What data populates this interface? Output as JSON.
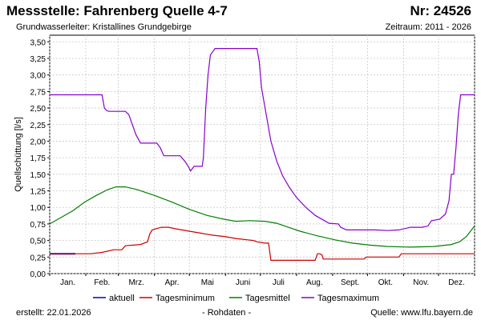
{
  "header": {
    "title": "Messstelle: Fahrenberg Quelle 4-7",
    "number": "Nr: 24526",
    "subtitle": "Grundwasserleiter: Kristallines Grundgebirge",
    "period": "Zeitraum: 2011 - 2026"
  },
  "footer": {
    "created": "erstellt:  22.01.2026",
    "rawdata": "- Rohdaten -",
    "source": "Quelle: www.lfu.bayern.de"
  },
  "chart_data": {
    "type": "line",
    "ylabel": "Quellschüttung [l/s]",
    "xlabel": "",
    "ylim": [
      0,
      3.6
    ],
    "yticks": [
      "0,00",
      "0,25",
      "0,50",
      "0,75",
      "1,00",
      "1,25",
      "1,50",
      "1,75",
      "2,00",
      "2,25",
      "2,50",
      "2,75",
      "3,00",
      "3,25",
      "3,50"
    ],
    "months": [
      "Jan.",
      "Feb.",
      "Mrz.",
      "Apr.",
      "Mai",
      "Juni",
      "Juli",
      "Aug.",
      "Sept.",
      "Okt.",
      "Nov.",
      "Dez."
    ],
    "grid": true,
    "legend_position": "bottom",
    "series": [
      {
        "name": "aktuell",
        "color": "#0000cc",
        "points": [
          [
            0,
            0.3
          ],
          [
            10,
            0.3
          ],
          [
            22,
            0.3
          ]
        ]
      },
      {
        "name": "Tagesminimum",
        "color": "#cc0000",
        "points": [
          [
            0,
            0.3
          ],
          [
            35,
            0.3
          ],
          [
            45,
            0.32
          ],
          [
            55,
            0.36
          ],
          [
            62,
            0.36
          ],
          [
            65,
            0.42
          ],
          [
            78,
            0.44
          ],
          [
            84,
            0.48
          ],
          [
            86,
            0.6
          ],
          [
            88,
            0.66
          ],
          [
            92,
            0.68
          ],
          [
            96,
            0.7
          ],
          [
            102,
            0.7
          ],
          [
            110,
            0.67
          ],
          [
            120,
            0.64
          ],
          [
            130,
            0.61
          ],
          [
            140,
            0.58
          ],
          [
            150,
            0.56
          ],
          [
            160,
            0.53
          ],
          [
            170,
            0.51
          ],
          [
            175,
            0.5
          ],
          [
            178,
            0.48
          ],
          [
            185,
            0.46
          ],
          [
            188,
            0.46
          ],
          [
            190,
            0.2
          ],
          [
            210,
            0.2
          ],
          [
            228,
            0.2
          ],
          [
            230,
            0.3
          ],
          [
            232,
            0.3
          ],
          [
            234,
            0.28
          ],
          [
            235,
            0.22
          ],
          [
            260,
            0.22
          ],
          [
            270,
            0.22
          ],
          [
            272,
            0.25
          ],
          [
            300,
            0.25
          ],
          [
            302,
            0.3
          ],
          [
            320,
            0.3
          ],
          [
            350,
            0.3
          ],
          [
            365,
            0.3
          ]
        ]
      },
      {
        "name": "Tagesmittel",
        "color": "#008000",
        "points": [
          [
            0,
            0.75
          ],
          [
            10,
            0.85
          ],
          [
            20,
            0.95
          ],
          [
            30,
            1.08
          ],
          [
            40,
            1.18
          ],
          [
            50,
            1.27
          ],
          [
            57,
            1.31
          ],
          [
            65,
            1.31
          ],
          [
            75,
            1.27
          ],
          [
            90,
            1.18
          ],
          [
            105,
            1.08
          ],
          [
            120,
            0.97
          ],
          [
            135,
            0.88
          ],
          [
            150,
            0.82
          ],
          [
            160,
            0.79
          ],
          [
            172,
            0.8
          ],
          [
            185,
            0.79
          ],
          [
            195,
            0.76
          ],
          [
            205,
            0.7
          ],
          [
            215,
            0.64
          ],
          [
            230,
            0.57
          ],
          [
            245,
            0.51
          ],
          [
            260,
            0.46
          ],
          [
            275,
            0.43
          ],
          [
            290,
            0.41
          ],
          [
            310,
            0.4
          ],
          [
            330,
            0.41
          ],
          [
            345,
            0.44
          ],
          [
            352,
            0.48
          ],
          [
            358,
            0.56
          ],
          [
            365,
            0.72
          ]
        ]
      },
      {
        "name": "Tagesmaximum",
        "color": "#8800cc",
        "points": [
          [
            0,
            2.7
          ],
          [
            44,
            2.7
          ],
          [
            45,
            2.7
          ],
          [
            47,
            2.5
          ],
          [
            49,
            2.46
          ],
          [
            51,
            2.45
          ],
          [
            65,
            2.45
          ],
          [
            68,
            2.4
          ],
          [
            70,
            2.3
          ],
          [
            74,
            2.1
          ],
          [
            78,
            1.97
          ],
          [
            92,
            1.97
          ],
          [
            95,
            1.9
          ],
          [
            98,
            1.78
          ],
          [
            112,
            1.78
          ],
          [
            116,
            1.7
          ],
          [
            119,
            1.62
          ],
          [
            121,
            1.55
          ],
          [
            124,
            1.62
          ],
          [
            131,
            1.62
          ],
          [
            132,
            1.75
          ],
          [
            134,
            2.5
          ],
          [
            136,
            3.0
          ],
          [
            138,
            3.3
          ],
          [
            140,
            3.35
          ],
          [
            142,
            3.4
          ],
          [
            178,
            3.4
          ],
          [
            180,
            3.2
          ],
          [
            182,
            2.8
          ],
          [
            186,
            2.4
          ],
          [
            190,
            2.0
          ],
          [
            195,
            1.7
          ],
          [
            200,
            1.48
          ],
          [
            206,
            1.3
          ],
          [
            212,
            1.15
          ],
          [
            220,
            1.0
          ],
          [
            228,
            0.88
          ],
          [
            236,
            0.8
          ],
          [
            240,
            0.76
          ],
          [
            248,
            0.75
          ],
          [
            250,
            0.7
          ],
          [
            255,
            0.66
          ],
          [
            265,
            0.66
          ],
          [
            280,
            0.66
          ],
          [
            290,
            0.65
          ],
          [
            300,
            0.66
          ],
          [
            310,
            0.7
          ],
          [
            320,
            0.7
          ],
          [
            325,
            0.72
          ],
          [
            328,
            0.8
          ],
          [
            335,
            0.82
          ],
          [
            340,
            0.9
          ],
          [
            343,
            1.1
          ],
          [
            345,
            1.5
          ],
          [
            347,
            1.5
          ],
          [
            349,
            1.9
          ],
          [
            351,
            2.4
          ],
          [
            353,
            2.7
          ],
          [
            365,
            2.7
          ]
        ]
      }
    ]
  }
}
